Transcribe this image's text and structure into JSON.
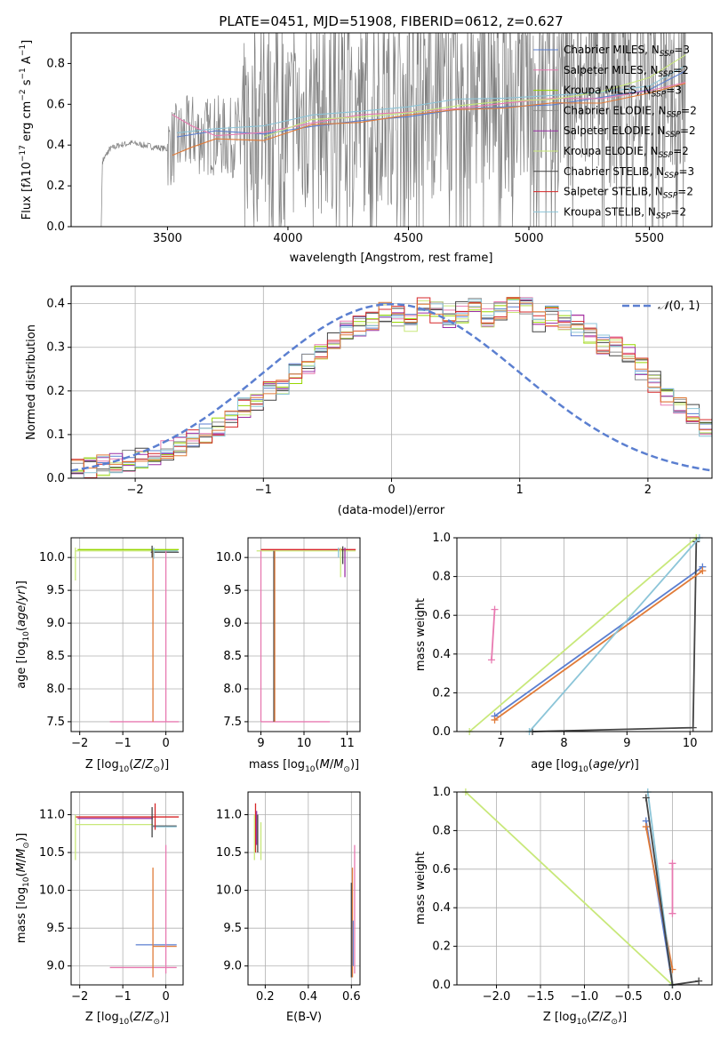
{
  "figure_title": "PLATE=0451, MJD=51908, FIBERID=0612, z=0.627",
  "colors": {
    "chabrier_miles": "#5b7fd0",
    "salpeter_miles": "#e87ab1",
    "kroupa_miles": "#97d600",
    "chabrier_elodie": "#8c8c8c",
    "salpeter_elodie": "#9a2fa5",
    "kroupa_elodie": "#c8e87a",
    "chabrier_stelib": "#444444",
    "salpeter_stelib": "#d62728",
    "kroupa_stelib": "#8cc5d8",
    "orange": "#e07b39",
    "gaussian": "#5b7fd0"
  },
  "chart_data": [
    {
      "type": "line",
      "id": "spectrum",
      "xlabel": "wavelength [Angstrom, rest frame]",
      "ylabel": "Flux [f$_\\lambda$10$^{-17}$ erg cm$^{-2}$ s$^{-1}$ A$^{-1}$]",
      "xlim": [
        3100,
        5760
      ],
      "ylim": [
        0,
        0.95
      ],
      "xticks": [
        "3500",
        "4000",
        "4500",
        "5000",
        "5500"
      ],
      "yticks": [
        "0.0",
        "0.2",
        "0.4",
        "0.6",
        "0.8"
      ],
      "grid": false,
      "legend_position": "top-right",
      "legend": [
        {
          "label": "Chabrier MILES, N$_{SSP}$=3",
          "color": "#5b7fd0"
        },
        {
          "label": "Salpeter MILES, N$_{SSP}$=2",
          "color": "#e87ab1"
        },
        {
          "label": "Kroupa MILES, N$_{SSP}$=3",
          "color": "#97d600"
        },
        {
          "label": "Chabrier ELODIE, N$_{SSP}$=2",
          "color": "#8c8c8c"
        },
        {
          "label": "Salpeter ELODIE, N$_{SSP}$=2",
          "color": "#9a2fa5"
        },
        {
          "label": "Kroupa ELODIE, N$_{SSP}$=2",
          "color": "#c8e87a"
        },
        {
          "label": "Chabrier STELIB, N$_{SSP}$=3",
          "color": "#444444"
        },
        {
          "label": "Salpeter STELIB, N$_{SSP}$=2",
          "color": "#d62728"
        },
        {
          "label": "Kroupa STELIB, N$_{SSP}$=2",
          "color": "#8cc5d8"
        }
      ],
      "observed_spectrum": {
        "x": [
          3230,
          3260,
          3300,
          3350,
          3400,
          3450,
          3500,
          3550,
          3600,
          3650,
          3700,
          3750,
          3800,
          3850,
          3900,
          3950,
          4000,
          4050,
          4100,
          4150,
          4200,
          4250,
          4300,
          4350,
          4400,
          4450,
          4500,
          4550,
          4600,
          4650,
          4700,
          4750,
          4800,
          4850,
          4900,
          4950,
          5000,
          5050,
          5100,
          5150,
          5200,
          5250,
          5300,
          5350,
          5400,
          5450,
          5500,
          5550,
          5600,
          5650
        ],
        "y": [
          0.32,
          0.38,
          0.4,
          0.41,
          0.4,
          0.39,
          0.38,
          0.42,
          0.46,
          0.44,
          0.45,
          0.43,
          0.45,
          0.48,
          0.5,
          0.51,
          0.5,
          0.52,
          0.53,
          0.52,
          0.55,
          0.56,
          0.54,
          0.57,
          0.58,
          0.59,
          0.58,
          0.57,
          0.6,
          0.61,
          0.6,
          0.62,
          0.63,
          0.61,
          0.62,
          0.63,
          0.64,
          0.62,
          0.63,
          0.65,
          0.64,
          0.66,
          0.65,
          0.67,
          0.68,
          0.66,
          0.69,
          0.7,
          0.71,
          0.72
        ]
      },
      "models": [
        {
          "name": "Chabrier MILES, N$_{SSP}$=3",
          "x": [
            3540,
            3700,
            3900,
            4100,
            4300,
            4500,
            4700,
            4900,
            5100,
            5300,
            5500,
            5650
          ],
          "y": [
            0.44,
            0.46,
            0.45,
            0.5,
            0.53,
            0.55,
            0.58,
            0.6,
            0.61,
            0.63,
            0.67,
            0.75
          ]
        },
        {
          "name": "Salpeter MILES, N$_{SSP}$=2",
          "x": [
            3520,
            3600,
            3700,
            3900,
            4100,
            4300,
            4500,
            4700,
            4900,
            5100,
            5300,
            5500,
            5650
          ],
          "y": [
            0.55,
            0.48,
            0.46,
            0.45,
            0.52,
            0.54,
            0.56,
            0.59,
            0.61,
            0.62,
            0.64,
            0.68,
            0.72
          ]
        },
        {
          "name": "Kroupa ELODIE, N$_{SSP}$=2",
          "x": [
            3900,
            4100,
            4300,
            4500,
            4700,
            4900,
            5100,
            5300,
            5500,
            5650
          ],
          "y": [
            0.44,
            0.52,
            0.54,
            0.57,
            0.6,
            0.62,
            0.63,
            0.66,
            0.72,
            0.85
          ]
        },
        {
          "name": "Salpeter STELIB, N$_{SSP}$=2",
          "x": [
            3520,
            3600,
            3700,
            3900,
            4100,
            4300,
            4500,
            4700,
            4900,
            5100,
            5300,
            5500,
            5650
          ],
          "y": [
            0.35,
            0.4,
            0.42,
            0.43,
            0.49,
            0.52,
            0.54,
            0.57,
            0.59,
            0.6,
            0.62,
            0.66,
            0.7
          ]
        },
        {
          "name": "Kroupa STELIB, N$_{SSP}$=2",
          "x": [
            3540,
            3700,
            3900,
            4100,
            4300,
            4500,
            4700,
            4900,
            5100,
            5300,
            5500,
            5650
          ],
          "y": [
            0.46,
            0.47,
            0.48,
            0.56,
            0.58,
            0.59,
            0.62,
            0.63,
            0.64,
            0.66,
            0.7,
            0.78
          ]
        }
      ]
    },
    {
      "type": "line",
      "id": "residual-histogram",
      "xlabel": "(data-model)/error",
      "ylabel": "Normed distribution",
      "xlim": [
        -2.5,
        2.5
      ],
      "ylim": [
        0,
        0.44
      ],
      "xticks": [
        "−2",
        "−1",
        "0",
        "1",
        "2"
      ],
      "yticks": [
        "0.0",
        "0.1",
        "0.2",
        "0.3",
        "0.4"
      ],
      "grid": true,
      "legend_position": "top-right",
      "legend": [
        {
          "label": "$\\mathcal{N}(0, 1)$",
          "color": "#5b7fd0"
        }
      ],
      "bin_edges_start": -2.5,
      "bin_width": 0.1,
      "histogram_values": [
        0.02,
        0.025,
        0.03,
        0.035,
        0.04,
        0.045,
        0.055,
        0.065,
        0.075,
        0.09,
        0.1,
        0.12,
        0.14,
        0.16,
        0.18,
        0.2,
        0.21,
        0.24,
        0.26,
        0.29,
        0.31,
        0.34,
        0.35,
        0.36,
        0.38,
        0.37,
        0.36,
        0.39,
        0.38,
        0.37,
        0.38,
        0.39,
        0.37,
        0.38,
        0.4,
        0.39,
        0.36,
        0.37,
        0.36,
        0.35,
        0.33,
        0.31,
        0.3,
        0.29,
        0.25,
        0.22,
        0.19,
        0.17,
        0.15,
        0.12,
        0.1,
        0.09,
        0.08,
        0.07,
        0.06,
        0.055,
        0.05,
        0.045,
        0.04,
        0.035
      ]
    },
    {
      "type": "scatter",
      "id": "age-vs-Z",
      "xlabel": "Z [log$_{10}$(Z/Z$_\\odot$)]",
      "ylabel": "age  [log$_{10}$(age/yr)]",
      "xlim": [
        -2.2,
        0.4
      ],
      "ylim": [
        7.35,
        10.3
      ],
      "xticks": [
        "−2",
        "−1",
        "0"
      ],
      "yticks": [
        "7.5",
        "8.0",
        "8.5",
        "9.0",
        "9.5",
        "10.0"
      ],
      "grid": true
    },
    {
      "type": "scatter",
      "id": "age-vs-mass",
      "xlabel": "mass [log$_{10}$(M/M$_\\odot$)]",
      "ylabel": "",
      "xlim": [
        8.7,
        11.3
      ],
      "ylim": [
        7.35,
        10.3
      ],
      "xticks": [
        "9",
        "10",
        "11"
      ],
      "yticks": [
        "7.5",
        "8.0",
        "8.5",
        "9.0",
        "9.5",
        "10.0"
      ],
      "grid": true
    },
    {
      "type": "line",
      "id": "massweight-vs-age",
      "xlabel": "age  [log$_{10}$(age/yr)]",
      "ylabel": "mass weight",
      "xlim": [
        6.3,
        10.35
      ],
      "ylim": [
        0,
        1
      ],
      "xticks": [
        "7",
        "8",
        "9",
        "10"
      ],
      "yticks": [
        "0.0",
        "0.2",
        "0.4",
        "0.6",
        "0.8",
        "1.0"
      ],
      "grid": true,
      "series": [
        {
          "name": "Chabrier MILES, N$_{SSP}$=3",
          "x": [
            6.9,
            10.2
          ],
          "y": [
            0.08,
            0.85
          ]
        },
        {
          "name": "Salpeter MILES, N$_{SSP}$=2",
          "x": [
            6.85,
            6.9
          ],
          "y": [
            0.37,
            0.63
          ]
        },
        {
          "name": "Kroupa MILES, N$_{SSP}$=3",
          "x": [
            6.5,
            10.1
          ],
          "y": [
            0.0,
            1.0
          ]
        },
        {
          "name": "Chabrier STELIB, N$_{SSP}$=3",
          "x": [
            7.5,
            10.05,
            10.1
          ],
          "y": [
            0.0,
            0.02,
            0.98
          ]
        },
        {
          "name": "Salpeter STELIB, N$_{SSP}$=2",
          "x": [
            6.9,
            10.2
          ],
          "y": [
            0.06,
            0.83
          ]
        },
        {
          "name": "Kroupa STELIB, N$_{SSP}$=2",
          "x": [
            7.45,
            10.15
          ],
          "y": [
            0.0,
            1.0
          ]
        }
      ]
    },
    {
      "type": "scatter",
      "id": "mass-vs-Z",
      "xlabel": "Z [log$_{10}$(Z/Z$_\\odot$)]",
      "ylabel": "mass [log$_{10}$(M/M$_\\odot$)]",
      "xlim": [
        -2.2,
        0.4
      ],
      "ylim": [
        8.75,
        11.3
      ],
      "xticks": [
        "−2",
        "−1",
        "0"
      ],
      "yticks": [
        "9.0",
        "9.5",
        "10.0",
        "10.5",
        "11.0"
      ],
      "grid": true
    },
    {
      "type": "scatter",
      "id": "mass-vs-EBV",
      "xlabel": "E(B-V)",
      "ylabel": "",
      "xlim": [
        0.12,
        0.64
      ],
      "ylim": [
        8.75,
        11.3
      ],
      "xticks": [
        "0.2",
        "0.4",
        "0.6"
      ],
      "yticks": [
        "9.0",
        "9.5",
        "10.0",
        "10.5",
        "11.0"
      ],
      "grid": true
    },
    {
      "type": "line",
      "id": "massweight-vs-Z",
      "xlabel": "Z [log$_{10}$(Z/Z$_\\odot$)]",
      "ylabel": "mass weight",
      "xlim": [
        -2.45,
        0.45
      ],
      "ylim": [
        0,
        1
      ],
      "xticks": [
        "−2.0",
        "−1.5",
        "−1.0",
        "−0.5",
        "0.0"
      ],
      "yticks": [
        "0.0",
        "0.2",
        "0.4",
        "0.6",
        "0.8",
        "1.0"
      ],
      "grid": true,
      "series": [
        {
          "name": "Kroupa MILES, N$_{SSP}$=3",
          "x": [
            -2.35,
            0.0
          ],
          "y": [
            1.0,
            0.0
          ]
        },
        {
          "name": "Chabrier MILES, N$_{SSP}$=3",
          "x": [
            -0.3,
            0.0
          ],
          "y": [
            0.85,
            0.0
          ]
        },
        {
          "name": "Salpeter STELIB, N$_{SSP}$=2",
          "x": [
            -0.3,
            0.0
          ],
          "y": [
            0.82,
            0.08
          ]
        },
        {
          "name": "Kroupa STELIB, N$_{SSP}$=2",
          "x": [
            -0.28,
            0.0
          ],
          "y": [
            1.0,
            0.0
          ]
        },
        {
          "name": "Chabrier STELIB, N$_{SSP}$=3",
          "x": [
            -0.3,
            0.0,
            0.3
          ],
          "y": [
            0.97,
            0.0,
            0.02
          ]
        },
        {
          "name": "Salpeter MILES, N$_{SSP}$=2",
          "x": [
            0.0,
            0.0
          ],
          "y": [
            0.37,
            0.63
          ]
        }
      ]
    }
  ]
}
